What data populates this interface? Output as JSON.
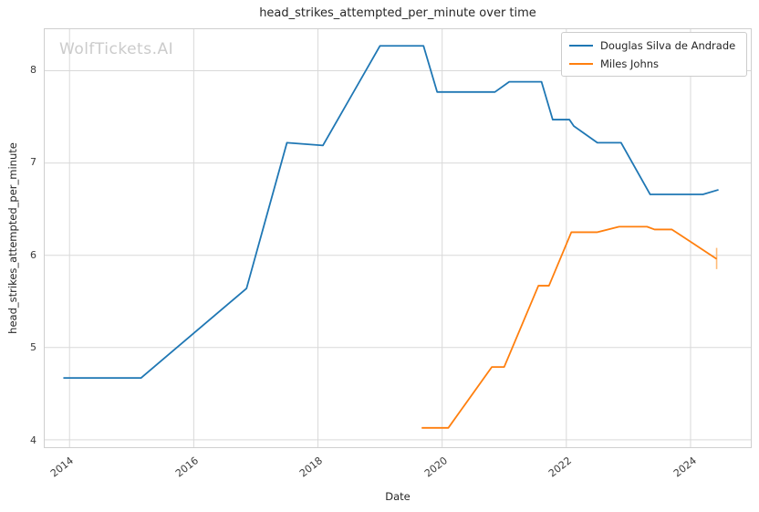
{
  "title": "head_strikes_attempted_per_minute over time",
  "watermark": "WolfTickets.AI",
  "colors": {
    "series_blue": "#1f77b4",
    "series_orange": "#ff7f0e",
    "grid": "#d9d9d9",
    "spine": "#cfcfcf",
    "text": "#262626",
    "watermark": "#cbcbcb"
  },
  "chart_data": {
    "type": "line",
    "title": "head_strikes_attempted_per_minute over time",
    "xlabel": "Date",
    "ylabel": "head_strikes_attempted_per_minute",
    "grid": true,
    "legend_position": "upper right",
    "xlim": [
      2013.6,
      2024.97
    ],
    "ylim": [
      3.92,
      8.45
    ],
    "x_ticks": [
      2014,
      2016,
      2018,
      2020,
      2022,
      2024
    ],
    "y_ticks": [
      4,
      5,
      6,
      7,
      8
    ],
    "series": [
      {
        "name": "Douglas Silva de Andrade",
        "color": "#1f77b4",
        "points": [
          [
            2013.9,
            4.67
          ],
          [
            2015.15,
            4.67
          ],
          [
            2016.85,
            5.64
          ],
          [
            2017.5,
            7.22
          ],
          [
            2018.08,
            7.19
          ],
          [
            2019.0,
            8.27
          ],
          [
            2019.7,
            8.27
          ],
          [
            2019.92,
            7.77
          ],
          [
            2020.85,
            7.77
          ],
          [
            2021.08,
            7.88
          ],
          [
            2021.6,
            7.88
          ],
          [
            2021.78,
            7.47
          ],
          [
            2022.05,
            7.47
          ],
          [
            2022.12,
            7.4
          ],
          [
            2022.5,
            7.22
          ],
          [
            2022.88,
            7.22
          ],
          [
            2023.35,
            6.66
          ],
          [
            2024.2,
            6.66
          ],
          [
            2024.45,
            6.71
          ]
        ]
      },
      {
        "name": "Miles Johns",
        "color": "#ff7f0e",
        "points": [
          [
            2019.67,
            4.13
          ],
          [
            2020.1,
            4.13
          ],
          [
            2020.8,
            4.79
          ],
          [
            2021.0,
            4.79
          ],
          [
            2021.55,
            5.67
          ],
          [
            2021.72,
            5.67
          ],
          [
            2022.08,
            6.25
          ],
          [
            2022.5,
            6.25
          ],
          [
            2022.85,
            6.31
          ],
          [
            2023.3,
            6.31
          ],
          [
            2023.42,
            6.28
          ],
          [
            2023.7,
            6.28
          ],
          [
            2024.42,
            5.96
          ]
        ],
        "error_bar": {
          "x": 2024.42,
          "y_low": 5.85,
          "y_high": 6.08,
          "color": "#ffbb78"
        }
      }
    ]
  }
}
